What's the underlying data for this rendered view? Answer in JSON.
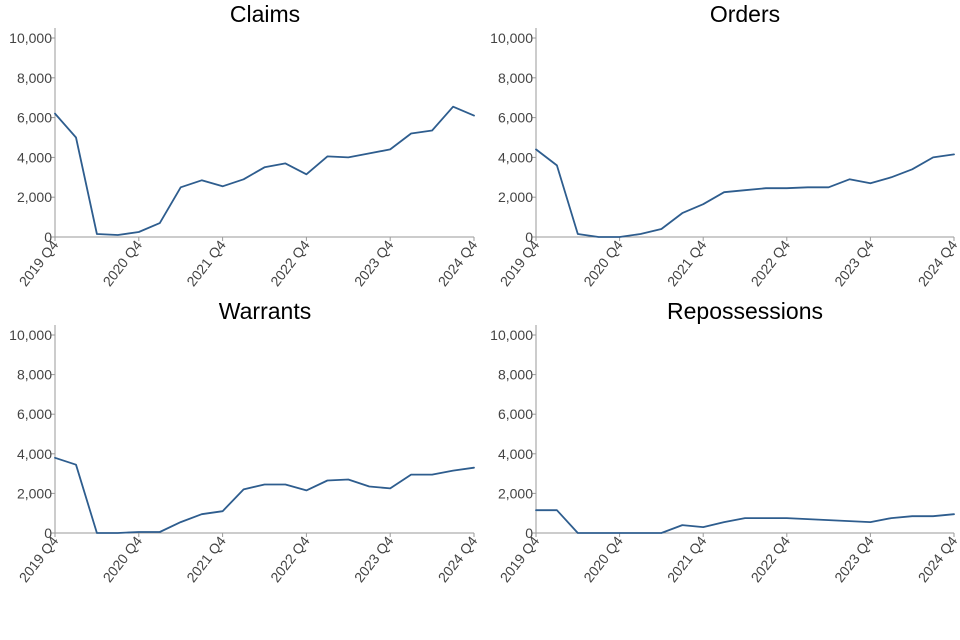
{
  "chart_data": [
    {
      "type": "line",
      "title": "Claims",
      "x": [
        "2019 Q4",
        "2020 Q1",
        "2020 Q2",
        "2020 Q3",
        "2020 Q4",
        "2021 Q1",
        "2021 Q2",
        "2021 Q3",
        "2021 Q4",
        "2022 Q1",
        "2022 Q2",
        "2022 Q3",
        "2022 Q4",
        "2023 Q1",
        "2023 Q2",
        "2023 Q3",
        "2023 Q4",
        "2024 Q1",
        "2024 Q2",
        "2024 Q3",
        "2024 Q4"
      ],
      "xticks": [
        "2019 Q4",
        "2020 Q4",
        "2021 Q4",
        "2022 Q4",
        "2023 Q4",
        "2024 Q4"
      ],
      "series": [
        {
          "values": [
            6200,
            5000,
            150,
            100,
            250,
            700,
            2500,
            2850,
            2550,
            2900,
            3500,
            3700,
            3150,
            4050,
            4000,
            4200,
            4400,
            5200,
            5350,
            6550,
            6100
          ]
        }
      ],
      "ylim": [
        0,
        10000
      ],
      "yticks": [
        "0",
        "2,000",
        "4,000",
        "6,000",
        "8,000",
        "10,000"
      ]
    },
    {
      "type": "line",
      "title": "Orders",
      "x": [
        "2019 Q4",
        "2020 Q1",
        "2020 Q2",
        "2020 Q3",
        "2020 Q4",
        "2021 Q1",
        "2021 Q2",
        "2021 Q3",
        "2021 Q4",
        "2022 Q1",
        "2022 Q2",
        "2022 Q3",
        "2022 Q4",
        "2023 Q1",
        "2023 Q2",
        "2023 Q3",
        "2023 Q4",
        "2024 Q1",
        "2024 Q2",
        "2024 Q3",
        "2024 Q4"
      ],
      "xticks": [
        "2019 Q4",
        "2020 Q4",
        "2021 Q4",
        "2022 Q4",
        "2023 Q4",
        "2024 Q4"
      ],
      "series": [
        {
          "values": [
            4400,
            3600,
            150,
            0,
            0,
            150,
            400,
            1200,
            1650,
            2250,
            2350,
            2450,
            2450,
            2500,
            2500,
            2900,
            2700,
            3000,
            3400,
            4000,
            4150
          ]
        }
      ],
      "ylim": [
        0,
        10000
      ],
      "yticks": [
        "0",
        "2,000",
        "4,000",
        "6,000",
        "8,000",
        "10,000"
      ]
    },
    {
      "type": "line",
      "title": "Warrants",
      "x": [
        "2019 Q4",
        "2020 Q1",
        "2020 Q2",
        "2020 Q3",
        "2020 Q4",
        "2021 Q1",
        "2021 Q2",
        "2021 Q3",
        "2021 Q4",
        "2022 Q1",
        "2022 Q2",
        "2022 Q3",
        "2022 Q4",
        "2023 Q1",
        "2023 Q2",
        "2023 Q3",
        "2023 Q4",
        "2024 Q1",
        "2024 Q2",
        "2024 Q3",
        "2024 Q4"
      ],
      "xticks": [
        "2019 Q4",
        "2020 Q4",
        "2021 Q4",
        "2022 Q4",
        "2023 Q4",
        "2024 Q4"
      ],
      "series": [
        {
          "values": [
            3800,
            3450,
            0,
            0,
            50,
            50,
            550,
            950,
            1100,
            2200,
            2450,
            2450,
            2150,
            2650,
            2700,
            2350,
            2250,
            2950,
            2950,
            3150,
            3300
          ]
        }
      ],
      "ylim": [
        0,
        10000
      ],
      "yticks": [
        "0",
        "2,000",
        "4,000",
        "6,000",
        "8,000",
        "10,000"
      ]
    },
    {
      "type": "line",
      "title": "Repossessions",
      "x": [
        "2019 Q4",
        "2020 Q1",
        "2020 Q2",
        "2020 Q3",
        "2020 Q4",
        "2021 Q1",
        "2021 Q2",
        "2021 Q3",
        "2021 Q4",
        "2022 Q1",
        "2022 Q2",
        "2022 Q3",
        "2022 Q4",
        "2023 Q1",
        "2023 Q2",
        "2023 Q3",
        "2023 Q4",
        "2024 Q1",
        "2024 Q2",
        "2024 Q3",
        "2024 Q4"
      ],
      "xticks": [
        "2019 Q4",
        "2020 Q4",
        "2021 Q4",
        "2022 Q4",
        "2023 Q4",
        "2024 Q4"
      ],
      "series": [
        {
          "values": [
            1150,
            1150,
            0,
            0,
            0,
            0,
            0,
            400,
            300,
            550,
            750,
            750,
            750,
            700,
            650,
            600,
            550,
            750,
            850,
            850,
            950
          ]
        }
      ],
      "ylim": [
        0,
        10000
      ],
      "yticks": [
        "0",
        "2,000",
        "4,000",
        "6,000",
        "8,000",
        "10,000"
      ]
    }
  ],
  "style": {
    "line_color": "#2e5d8e",
    "axis_color": "#9a9a9a",
    "grid": false
  }
}
